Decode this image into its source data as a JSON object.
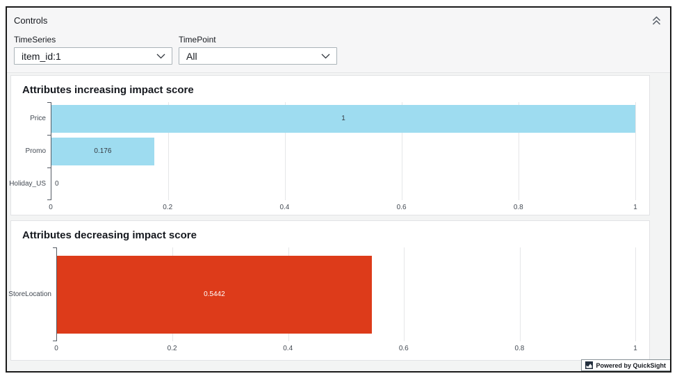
{
  "controls": {
    "title": "Controls",
    "collapse_icon": "chevron-double-up",
    "fields": [
      {
        "label": "TimeSeries",
        "value": "item_id:1",
        "icon": "chevron-down"
      },
      {
        "label": "TimePoint",
        "value": "All",
        "icon": "chevron-down"
      }
    ]
  },
  "chart_data": [
    {
      "type": "bar",
      "orientation": "horizontal",
      "title": "Attributes increasing impact score",
      "categories": [
        "Price",
        "Promo",
        "Holiday_US"
      ],
      "values": [
        1,
        0.176,
        0
      ],
      "value_labels": [
        "1",
        "0.176",
        "0"
      ],
      "bar_color": "#9edcf0",
      "value_label_color": "#33383f",
      "xlabel": "",
      "ylabel": "",
      "xlim": [
        0,
        1
      ],
      "xticks": [
        0,
        0.2,
        0.4,
        0.6,
        0.8,
        1
      ],
      "xtick_labels": [
        "0",
        "0.2",
        "0.4",
        "0.6",
        "0.8",
        "1"
      ],
      "grid": true,
      "legend": "none"
    },
    {
      "type": "bar",
      "orientation": "horizontal",
      "title": "Attributes decreasing impact score",
      "categories": [
        "StoreLocation"
      ],
      "values": [
        0.5442
      ],
      "value_labels": [
        "0.5442"
      ],
      "bar_color": "#dd3b1a",
      "value_label_color": "#ffffff",
      "xlabel": "",
      "ylabel": "",
      "xlim": [
        0,
        1
      ],
      "xticks": [
        0,
        0.2,
        0.4,
        0.6,
        0.8,
        1
      ],
      "xtick_labels": [
        "0",
        "0.2",
        "0.4",
        "0.6",
        "0.8",
        "1"
      ],
      "grid": true,
      "legend": "none"
    }
  ],
  "badge": {
    "label": "Powered by QuickSight",
    "icon": "quicksight-logo"
  },
  "colors": {
    "bar_increasing": "#9edcf0",
    "bar_decreasing": "#dd3b1a",
    "axis": "#545b64",
    "gridline": "#e5e6e8",
    "page_background": "#f3f4f4",
    "card_background": "#ffffff"
  }
}
